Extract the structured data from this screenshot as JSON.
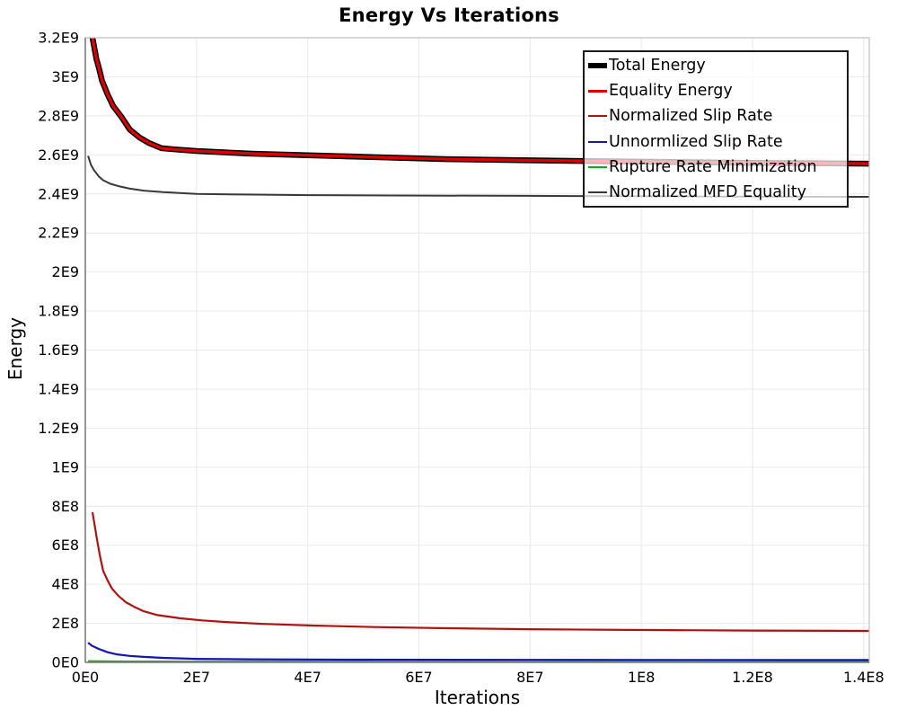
{
  "chart_data": {
    "type": "line",
    "title": "Energy Vs Iterations",
    "xlabel": "Iterations",
    "ylabel": "Energy",
    "xlim": [
      0,
      141000000
    ],
    "ylim": [
      0,
      3200000000
    ],
    "grid": true,
    "legend_position": "top-right",
    "style": {
      "grid_color": "#e9e9e9",
      "axis_color": "#7a7a7a",
      "border_color": "#c4c4c4",
      "legend_border_color": "#1a1a1a",
      "legend_background": "rgba(255,255,255,0.72)",
      "background": "#ffffff"
    },
    "x_ticks": {
      "values": [
        0,
        20000000,
        40000000,
        60000000,
        80000000,
        100000000,
        120000000,
        140000000
      ],
      "labels": [
        "0E0",
        "2E7",
        "4E7",
        "6E7",
        "8E7",
        "1E8",
        "1.2E8",
        "1.4E8"
      ]
    },
    "y_ticks": {
      "values": [
        0,
        200000000,
        400000000,
        600000000,
        800000000,
        1000000000,
        1200000000,
        1400000000,
        1600000000,
        1800000000,
        2000000000,
        2200000000,
        2400000000,
        2600000000,
        2800000000,
        3000000000,
        3200000000
      ],
      "labels": [
        "0E0",
        "2E8",
        "4E8",
        "6E8",
        "8E8",
        "1E9",
        "1.2E9",
        "1.4E9",
        "1.6E9",
        "1.8E9",
        "2E9",
        "2.2E9",
        "2.4E9",
        "2.6E9",
        "2.8E9",
        "3E9",
        "3.2E9"
      ]
    },
    "series": [
      {
        "name": "Total Energy",
        "color": "#000000",
        "width": 6.5,
        "x": [
          1000000.0,
          1300000.0,
          2000000.0,
          2400000.0,
          3000000.0,
          4000000.0,
          5000000.0,
          6500000.0,
          8000000.0,
          9700000.0,
          11500000.0,
          13700000.0,
          16000000.0,
          20000000.0,
          25000000.0,
          30000000.0,
          40000000.0,
          50000000.0,
          65000000.0,
          80000000.0,
          100000000.0,
          120000000.0,
          141000000.0
        ],
        "y": [
          3550000000.0,
          3200000000.0,
          3090000000.0,
          3050000000.0,
          2980000000.0,
          2910000000.0,
          2850000000.0,
          2795000000.0,
          2730000000.0,
          2690000000.0,
          2660000000.0,
          2634000000.0,
          2628000000.0,
          2620000000.0,
          2613000000.0,
          2606000000.0,
          2598000000.0,
          2590000000.0,
          2578000000.0,
          2572000000.0,
          2565000000.0,
          2559000000.0,
          2555000000.0
        ]
      },
      {
        "name": "Equality Energy",
        "color": "#dd0000",
        "width": 3.4,
        "x": [
          1000000.0,
          1300000.0,
          2000000.0,
          2400000.0,
          3000000.0,
          4000000.0,
          5000000.0,
          6500000.0,
          8000000.0,
          9700000.0,
          11500000.0,
          13700000.0,
          16000000.0,
          20000000.0,
          25000000.0,
          30000000.0,
          40000000.0,
          50000000.0,
          65000000.0,
          80000000.0,
          100000000.0,
          120000000.0,
          141000000.0
        ],
        "y": [
          3550000000.0,
          3200000000.0,
          3090000000.0,
          3050000000.0,
          2980000000.0,
          2910000000.0,
          2850000000.0,
          2795000000.0,
          2730000000.0,
          2690000000.0,
          2660000000.0,
          2634000000.0,
          2628000000.0,
          2620000000.0,
          2613000000.0,
          2606000000.0,
          2598000000.0,
          2590000000.0,
          2578000000.0,
          2572000000.0,
          2565000000.0,
          2559000000.0,
          2555000000.0
        ]
      },
      {
        "name": "Normalized Slip Rate",
        "color": "#b01212",
        "width": 2.2,
        "x": [
          1300000.0,
          1700000.0,
          2100000.0,
          2600000.0,
          3200000.0,
          4000000.0,
          4800000.0,
          6000000.0,
          7300000.0,
          9000000.0,
          10500000.0,
          13000000.0,
          17000000.0,
          21000000.0,
          25000000.0,
          32000000.0,
          41000000.0,
          52000000.0,
          65000000.0,
          80000000.0,
          98000000.0,
          120000000.0,
          141000000.0
        ],
        "y": [
          770000000.0,
          700000000.0,
          630000000.0,
          550000000.0,
          470000000.0,
          420000000.0,
          378000000.0,
          340000000.0,
          308000000.0,
          282000000.0,
          262000000.0,
          242000000.0,
          226000000.0,
          215000000.0,
          207000000.0,
          197000000.0,
          189000000.0,
          181000000.0,
          175000000.0,
          170000000.0,
          166000000.0,
          163000000.0,
          161000000.0
        ]
      },
      {
        "name": "Unnormlized Slip Rate",
        "color": "#1515b0",
        "width": 2.2,
        "x": [
          500000.0,
          1200000.0,
          2400000.0,
          4000000.0,
          5700000.0,
          8000000.0,
          10500000.0,
          14000000.0,
          20000000.0,
          30000000.0,
          49000000.0,
          80000000.0,
          110000000.0,
          141000000.0
        ],
        "y": [
          101000000.0,
          85000000.0,
          69000000.0,
          52000000.0,
          41000000.0,
          33000000.0,
          28000000.0,
          23000000.0,
          18000000.0,
          15500000.0,
          14000000.0,
          13000000.0,
          12500000.0,
          12000000.0
        ]
      },
      {
        "name": "Rupture Rate Minimization",
        "color": "#0ab00a",
        "width": 2.2,
        "x": [
          500000.0,
          5000000.0,
          20000000.0,
          60000000.0,
          100000000.0,
          141000000.0
        ],
        "y": [
          6000000.0,
          4500000.0,
          3500000.0,
          3000000.0,
          2500000.0,
          2000000.0
        ]
      },
      {
        "name": "Normalized MFD Equality",
        "color": "#383838",
        "width": 2.0,
        "x": [
          500000.0,
          1000000.0,
          1600000.0,
          2400000.0,
          3200000.0,
          4500000.0,
          6000000.0,
          8000000.0,
          10500000.0,
          14000000.0,
          20000000.0,
          28000000.0,
          40000000.0,
          55000000.0,
          80000000.0,
          110000000.0,
          141000000.0
        ],
        "y": [
          2595000000.0,
          2550000000.0,
          2520000000.0,
          2490000000.0,
          2470000000.0,
          2452000000.0,
          2440000000.0,
          2427000000.0,
          2417000000.0,
          2409000000.0,
          2400000000.0,
          2397000000.0,
          2394000000.0,
          2392000000.0,
          2390000000.0,
          2387000000.0,
          2385000000.0
        ]
      }
    ]
  }
}
